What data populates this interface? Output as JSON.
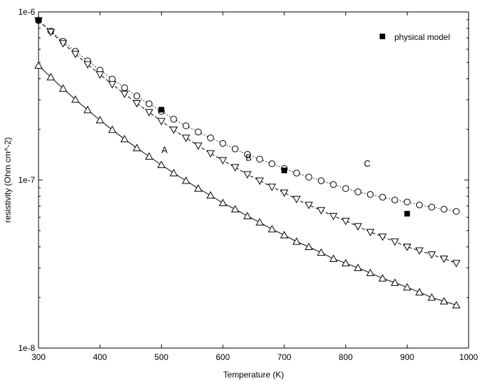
{
  "chart_data": {
    "type": "scatter",
    "title": "",
    "xlabel": "Temperature (K)",
    "ylabel": "resistivity (Ohm cm^-2)",
    "xlim": [
      300,
      1000
    ],
    "ylim": [
      1e-08,
      1e-06
    ],
    "yscale": "log",
    "grid": false,
    "x_ticks": [
      300,
      400,
      500,
      600,
      700,
      800,
      900,
      1000
    ],
    "x_tick_labels": [
      "300",
      "400",
      "500",
      "600",
      "700",
      "800",
      "900",
      "1000"
    ],
    "y_major_ticks": [
      1e-08,
      1e-07,
      1e-06
    ],
    "y_tick_labels": [
      "1e-8",
      "1e-7",
      "1e-6"
    ],
    "legend": {
      "position": "top-right",
      "entries": [
        {
          "marker": "filled-square",
          "label": "physical model"
        }
      ]
    },
    "annotations": [
      {
        "text": "A",
        "x": 505,
        "y": 1.45e-07
      },
      {
        "text": "B",
        "x": 642,
        "y": 1.3e-07
      },
      {
        "text": "C",
        "x": 835,
        "y": 1.2e-07
      }
    ],
    "series": [
      {
        "label": "C",
        "marker": "open-circle",
        "line": "dotted",
        "x": [
          300,
          320,
          340,
          360,
          380,
          400,
          420,
          440,
          460,
          480,
          500,
          520,
          540,
          560,
          580,
          600,
          620,
          640,
          660,
          680,
          700,
          720,
          740,
          760,
          780,
          800,
          820,
          840,
          860,
          880,
          900,
          920,
          940,
          960,
          980
        ],
        "y": [
          8.9e-07,
          7.69e-07,
          6.68e-07,
          5.83e-07,
          5.11e-07,
          4.5e-07,
          3.98e-07,
          3.54e-07,
          3.16e-07,
          2.84e-07,
          2.56e-07,
          2.3e-07,
          2.1e-07,
          1.93e-07,
          1.78e-07,
          1.65e-07,
          1.53e-07,
          1.42e-07,
          1.33e-07,
          1.25e-07,
          1.17e-07,
          1.1e-07,
          1.04e-07,
          9.9e-08,
          9.4e-08,
          8.9e-08,
          8.5e-08,
          8.2e-08,
          7.9e-08,
          7.6e-08,
          7.4e-08,
          7.1e-08,
          6.9e-08,
          6.7e-08,
          6.5e-08
        ]
      },
      {
        "label": "B",
        "marker": "open-triangle-down",
        "line": "dashed",
        "x": [
          300,
          320,
          340,
          360,
          380,
          400,
          420,
          440,
          460,
          480,
          500,
          520,
          540,
          560,
          580,
          600,
          620,
          640,
          660,
          680,
          700,
          720,
          740,
          760,
          780,
          800,
          820,
          840,
          860,
          880,
          900,
          920,
          940,
          960,
          980
        ],
        "y": [
          8.9e-07,
          7.6e-07,
          6.5e-07,
          5.62e-07,
          4.87e-07,
          4.24e-07,
          3.71e-07,
          3.25e-07,
          2.86e-07,
          2.53e-07,
          2.24e-07,
          1.99e-07,
          1.78e-07,
          1.6e-07,
          1.44e-07,
          1.31e-07,
          1.19e-07,
          1.08e-07,
          9.9e-08,
          9.1e-08,
          8.4e-08,
          7.7e-08,
          7.1e-08,
          6.6e-08,
          6.1e-08,
          5.7e-08,
          5.3e-08,
          4.9e-08,
          4.6e-08,
          4.3e-08,
          4e-08,
          3.8e-08,
          3.6e-08,
          3.4e-08,
          3.2e-08
        ]
      },
      {
        "label": "A",
        "marker": "open-triangle-up",
        "line": "solid",
        "x": [
          300,
          320,
          340,
          360,
          380,
          400,
          420,
          440,
          460,
          480,
          500,
          520,
          540,
          560,
          580,
          600,
          620,
          640,
          660,
          680,
          700,
          720,
          740,
          760,
          780,
          800,
          820,
          840,
          860,
          880,
          900,
          920,
          940,
          960,
          980
        ],
        "y": [
          4.8e-07,
          4.09e-07,
          3.5e-07,
          3.01e-07,
          2.61e-07,
          2.27e-07,
          1.99e-07,
          1.75e-07,
          1.55e-07,
          1.38e-07,
          1.23e-07,
          1.1e-07,
          9.9e-08,
          8.9e-08,
          8.1e-08,
          7.3e-08,
          6.7e-08,
          6.1e-08,
          5.6e-08,
          5.1e-08,
          4.7e-08,
          4.3e-08,
          4e-08,
          3.7e-08,
          3.4e-08,
          3.2e-08,
          3e-08,
          2.8e-08,
          2.6e-08,
          2.45e-08,
          2.3e-08,
          2.15e-08,
          2e-08,
          1.9e-08,
          1.8e-08
        ]
      },
      {
        "label": "physical model",
        "marker": "filled-square",
        "line": "none",
        "x": [
          300,
          500,
          700,
          900
        ],
        "y": [
          8.9e-07,
          2.62e-07,
          1.14e-07,
          6.3e-08
        ]
      }
    ]
  }
}
